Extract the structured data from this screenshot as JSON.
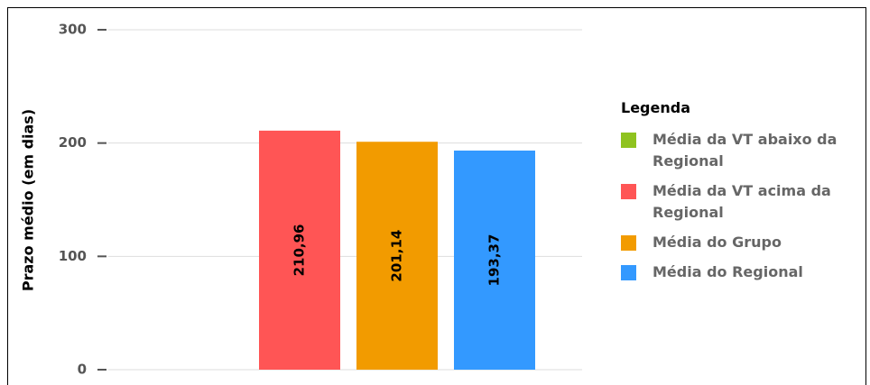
{
  "chart_data": {
    "type": "bar",
    "y_label": "Prazo médio (em dias)",
    "legend_title": "Legenda",
    "legend": "right",
    "grid": true,
    "ylim": [
      0,
      300
    ],
    "yticks": [
      0,
      100,
      200,
      300
    ],
    "series": [
      {
        "name": "Média da VT abaixo da Regional",
        "color": "#8fc31f",
        "values": [
          null
        ],
        "value_labels": [
          null
        ]
      },
      {
        "name": "Média da VT acima da Regional",
        "color": "#ff5555",
        "values": [
          210.96
        ],
        "value_labels": [
          "210,96"
        ]
      },
      {
        "name": "Média do Grupo",
        "color": "#f29b00",
        "values": [
          201.14
        ],
        "value_labels": [
          "201,14"
        ]
      },
      {
        "name": "Média do Regional",
        "color": "#3399ff",
        "values": [
          193.37
        ],
        "value_labels": [
          "193,37"
        ]
      }
    ]
  }
}
